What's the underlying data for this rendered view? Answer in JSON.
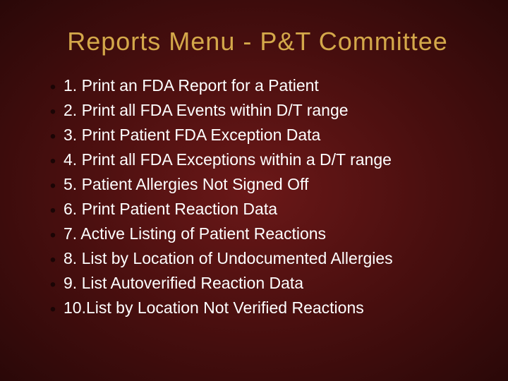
{
  "title": {
    "text": "Reports Menu - P&T Committee",
    "color": "#d4a84a",
    "fontsize": 36
  },
  "bullet": {
    "glyph": "•",
    "color": "#1a0505",
    "fontsize": 24
  },
  "list": {
    "color": "#ffffff",
    "fontsize": 23,
    "items": [
      "1. Print an FDA Report for a Patient",
      "2. Print all FDA Events within D/T range",
      "3. Print Patient FDA Exception Data",
      "4. Print all FDA Exceptions within a D/T range",
      "5. Patient Allergies Not Signed Off",
      "6. Print Patient Reaction Data",
      "7. Active Listing of Patient Reactions",
      "8. List by Location of Undocumented Allergies",
      "9. List Autoverified Reaction Data",
      "10.List by Location Not Verified Reactions"
    ]
  },
  "background": {
    "center_color": "#6b1818",
    "mid_color": "#4a0f0f",
    "edge_color": "#2a0808"
  }
}
